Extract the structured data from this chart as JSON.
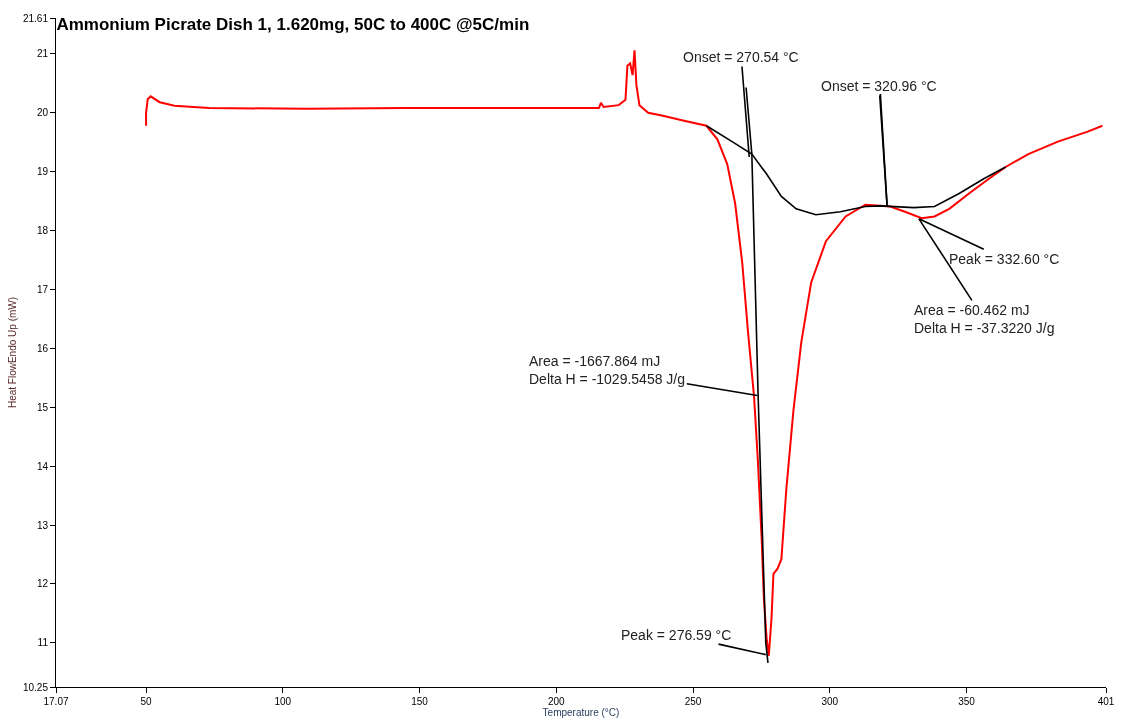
{
  "chart_data": {
    "type": "line",
    "title": "Ammonium Picrate Dish 1, 1.620mg, 50C to 400C @5C/min",
    "xlabel": "Temperature (°C)",
    "ylabel": "Heat FlowEndo Up (mW)",
    "xlim": [
      17.07,
      401
    ],
    "xticks": [
      17.07,
      50,
      100,
      150,
      200,
      250,
      300,
      350,
      401
    ],
    "ylim": [
      10.25,
      21.61
    ],
    "yticks": [
      10.25,
      11,
      12,
      13,
      14,
      15,
      16,
      17,
      18,
      19,
      20,
      21,
      21.61
    ],
    "marker": "none",
    "line_style": "solid",
    "series": [
      {
        "color": "#ff0000",
        "x": [
          50.0,
          50.0,
          50.6,
          51.7,
          55,
          60.4,
          73,
          109,
          145,
          181,
          215.6,
          216.3,
          217.3,
          222.8,
          225.3,
          226,
          227,
          227.9,
          228.6,
          229.3,
          230.4,
          233.6,
          239,
          246.3,
          254.9,
          258.9,
          262.5,
          265.4,
          268,
          270.1,
          272.3,
          273.7,
          275.1,
          275.9,
          276.9,
          277.7,
          278.7,
          279.4,
          280.9,
          282.3,
          284.1,
          286.7,
          289.6,
          293.2,
          298.6,
          305.8,
          313,
          318.5,
          322.1,
          327.5,
          333.6,
          338.3,
          343.7,
          350.9,
          358.2,
          364.3,
          372.6,
          383.4,
          394.3,
          399.7
        ],
        "values": [
          19.78,
          20.0,
          20.23,
          20.28,
          20.18,
          20.12,
          20.08,
          20.07,
          20.08,
          20.08,
          20.08,
          20.17,
          20.1,
          20.13,
          20.22,
          20.8,
          20.84,
          20.64,
          21.06,
          20.47,
          20.13,
          20.0,
          19.95,
          19.87,
          19.78,
          19.55,
          19.13,
          18.46,
          17.45,
          16.28,
          15.19,
          14.1,
          12.76,
          11.75,
          11.08,
          10.78,
          11.42,
          12.17,
          12.26,
          12.42,
          13.6,
          14.94,
          16.11,
          17.12,
          17.82,
          18.24,
          18.44,
          18.42,
          18.41,
          18.32,
          18.21,
          18.24,
          18.37,
          18.63,
          18.88,
          19.08,
          19.3,
          19.51,
          19.68,
          19.78
        ]
      },
      {
        "color": "#000000",
        "x": [
          254.9,
          264.3,
          271.5,
          276.9,
          282.3,
          287.7,
          294.9,
          303.9,
          313,
          318.5,
          330.7,
          338.3,
          347.3,
          356.3,
          364.3
        ],
        "values": [
          19.78,
          19.51,
          19.3,
          18.96,
          18.58,
          18.37,
          18.27,
          18.32,
          18.41,
          18.42,
          18.39,
          18.41,
          18.63,
          18.88,
          19.08
        ]
      },
      {
        "color": "#000000",
        "x": [
          269.4,
          271.5,
          273.8,
          276.6,
          277.4
        ],
        "values": [
          20.43,
          19.3,
          15.2,
          11.0,
          10.66
        ]
      },
      {
        "color": "#000000",
        "x": [
          318.5,
          320.96
        ],
        "values": [
          20.32,
          18.42
        ]
      }
    ],
    "annotations": [
      {
        "text": "Onset = 270.54 °C",
        "x": 270.54,
        "y": 19.25
      },
      {
        "text": "Onset = 320.96 °C",
        "x": 320.96,
        "y": 18.42
      },
      {
        "text": "Peak = 332.60 °C",
        "x": 332.6,
        "y": 18.2
      },
      {
        "text": "Area = -60.462 mJ\nDelta H = -37.3220 J/g",
        "x": 332.6,
        "y": 18.2
      },
      {
        "text": "Area = -1667.864 mJ\nDelta H = -1029.5458 J/g",
        "x": 273.5,
        "y": 15.2
      },
      {
        "text": "Peak = 276.59 °C",
        "x": 276.59,
        "y": 10.8
      }
    ]
  }
}
